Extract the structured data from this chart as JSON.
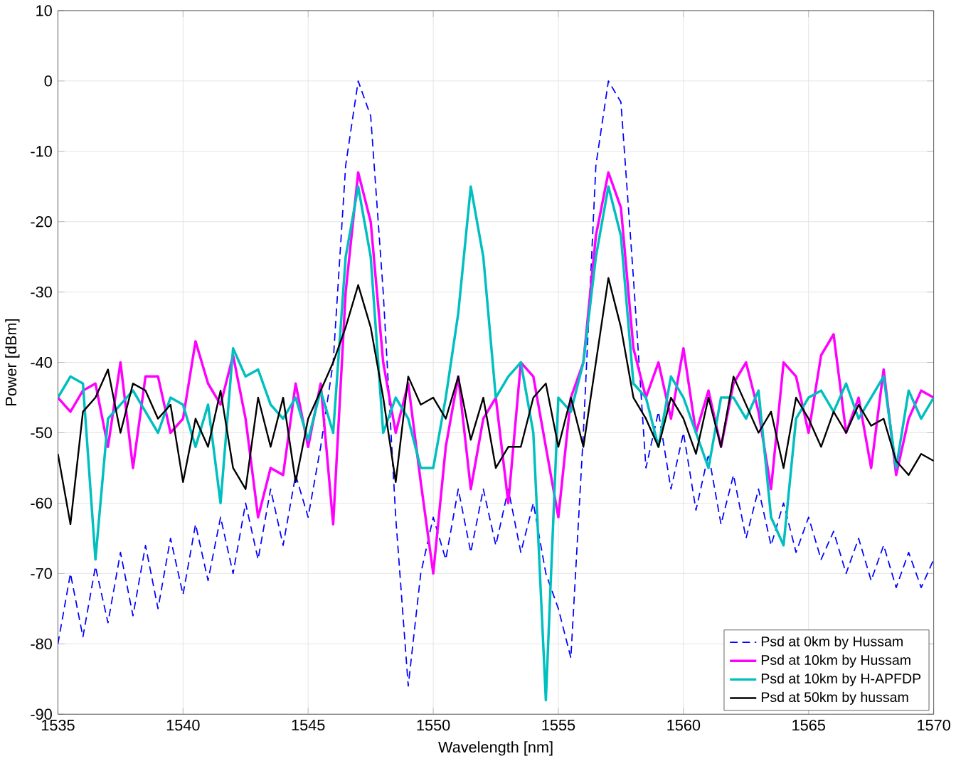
{
  "chart_data": {
    "type": "line",
    "xlabel": "Wavelength [nm]",
    "ylabel": "Power [dBm]",
    "x": [
      1535,
      1535.5,
      1536,
      1536.5,
      1537,
      1537.5,
      1538,
      1538.5,
      1539,
      1539.5,
      1540,
      1540.5,
      1541,
      1541.5,
      1542,
      1542.5,
      1543,
      1543.5,
      1544,
      1544.5,
      1545,
      1545.5,
      1546,
      1546.5,
      1547,
      1547.5,
      1548,
      1548.5,
      1549,
      1549.5,
      1550,
      1550.5,
      1551,
      1551.5,
      1552,
      1552.5,
      1553,
      1553.5,
      1554,
      1554.5,
      1555,
      1555.5,
      1556,
      1556.5,
      1557,
      1557.5,
      1558,
      1558.5,
      1559,
      1559.5,
      1560,
      1560.5,
      1561,
      1561.5,
      1562,
      1562.5,
      1563,
      1563.5,
      1564,
      1564.5,
      1565,
      1565.5,
      1566,
      1566.5,
      1567,
      1567.5,
      1568,
      1568.5,
      1569,
      1569.5,
      1570
    ],
    "series": [
      {
        "name": "Psd at 0km by Hussam",
        "color": "#0000ff",
        "line_style": "dashed",
        "values": [
          -80,
          -70,
          -79,
          -69,
          -77,
          -67,
          -76,
          -66,
          -75,
          -65,
          -73,
          -63,
          -71,
          -62,
          -70,
          -60,
          -68,
          -58,
          -66,
          -56,
          -62,
          -52,
          -40,
          -12,
          0,
          -5,
          -30,
          -62,
          -86,
          -70,
          -62,
          -68,
          -58,
          -67,
          -58,
          -66,
          -58,
          -67,
          -60,
          -70,
          -75,
          -82,
          -50,
          -12,
          0,
          -3,
          -28,
          -55,
          -47,
          -58,
          -50,
          -61,
          -53,
          -63,
          -56,
          -65,
          -58,
          -66,
          -60,
          -67,
          -62,
          -68,
          -64,
          -70,
          -65,
          -71,
          -66,
          -72,
          -67,
          -72,
          -68
        ]
      },
      {
        "name": "Psd at 10km by Hussam",
        "color": "#ff00ff",
        "line_style": "solid",
        "values": [
          -45,
          -47,
          -44,
          -43,
          -52,
          -40,
          -55,
          -42,
          -42,
          -50,
          -48,
          -37,
          -43,
          -46,
          -39,
          -48,
          -62,
          -55,
          -56,
          -43,
          -52,
          -43,
          -63,
          -30,
          -13,
          -20,
          -40,
          -50,
          -43,
          -57,
          -70,
          -52,
          -42,
          -58,
          -48,
          -45,
          -60,
          -40,
          -42,
          -52,
          -62,
          -45,
          -40,
          -22,
          -13,
          -18,
          -38,
          -45,
          -40,
          -48,
          -38,
          -50,
          -44,
          -52,
          -43,
          -40,
          -47,
          -58,
          -40,
          -42,
          -50,
          -39,
          -36,
          -50,
          -45,
          -55,
          -41,
          -56,
          -48,
          -44,
          -45
        ]
      },
      {
        "name": "Psd at 10km by H-APFDP",
        "color": "#00bfbf",
        "line_style": "solid",
        "values": [
          -45,
          -42,
          -43,
          -68,
          -48,
          -46,
          -44,
          -47,
          -50,
          -45,
          -46,
          -52,
          -46,
          -60,
          -38,
          -42,
          -41,
          -46,
          -48,
          -45,
          -51,
          -44,
          -50,
          -25,
          -15,
          -25,
          -50,
          -45,
          -48,
          -55,
          -55,
          -45,
          -33,
          -15,
          -25,
          -45,
          -42,
          -40,
          -50,
          -88,
          -45,
          -47,
          -40,
          -25,
          -15,
          -22,
          -43,
          -45,
          -52,
          -42,
          -45,
          -50,
          -55,
          -45,
          -45,
          -48,
          -44,
          -62,
          -66,
          -48,
          -45,
          -44,
          -47,
          -43,
          -48,
          -45,
          -42,
          -55,
          -44,
          -48,
          -45
        ]
      },
      {
        "name": "Psd at 50km by hussam",
        "color": "#000000",
        "line_style": "solid",
        "values": [
          -53,
          -63,
          -47,
          -45,
          -41,
          -50,
          -43,
          -44,
          -48,
          -46,
          -57,
          -48,
          -52,
          -44,
          -55,
          -58,
          -45,
          -52,
          -45,
          -57,
          -48,
          -44,
          -40,
          -35,
          -29,
          -35,
          -45,
          -57,
          -42,
          -46,
          -45,
          -48,
          -42,
          -51,
          -45,
          -55,
          -52,
          -52,
          -45,
          -43,
          -52,
          -45,
          -52,
          -40,
          -28,
          -35,
          -45,
          -48,
          -52,
          -45,
          -48,
          -53,
          -45,
          -52,
          -42,
          -46,
          -50,
          -47,
          -55,
          -45,
          -48,
          -52,
          -47,
          -50,
          -46,
          -49,
          -48,
          -54,
          -56,
          -53,
          -54
        ]
      }
    ],
    "xlim": [
      1535,
      1570
    ],
    "ylim": [
      -90,
      10
    ],
    "xticks": [
      1535,
      1540,
      1545,
      1550,
      1555,
      1560,
      1565,
      1570
    ],
    "yticks": [
      -90,
      -80,
      -70,
      -60,
      -50,
      -40,
      -30,
      -20,
      -10,
      0,
      10
    ],
    "grid": true,
    "legend": "bottom right",
    "marker": "none"
  }
}
